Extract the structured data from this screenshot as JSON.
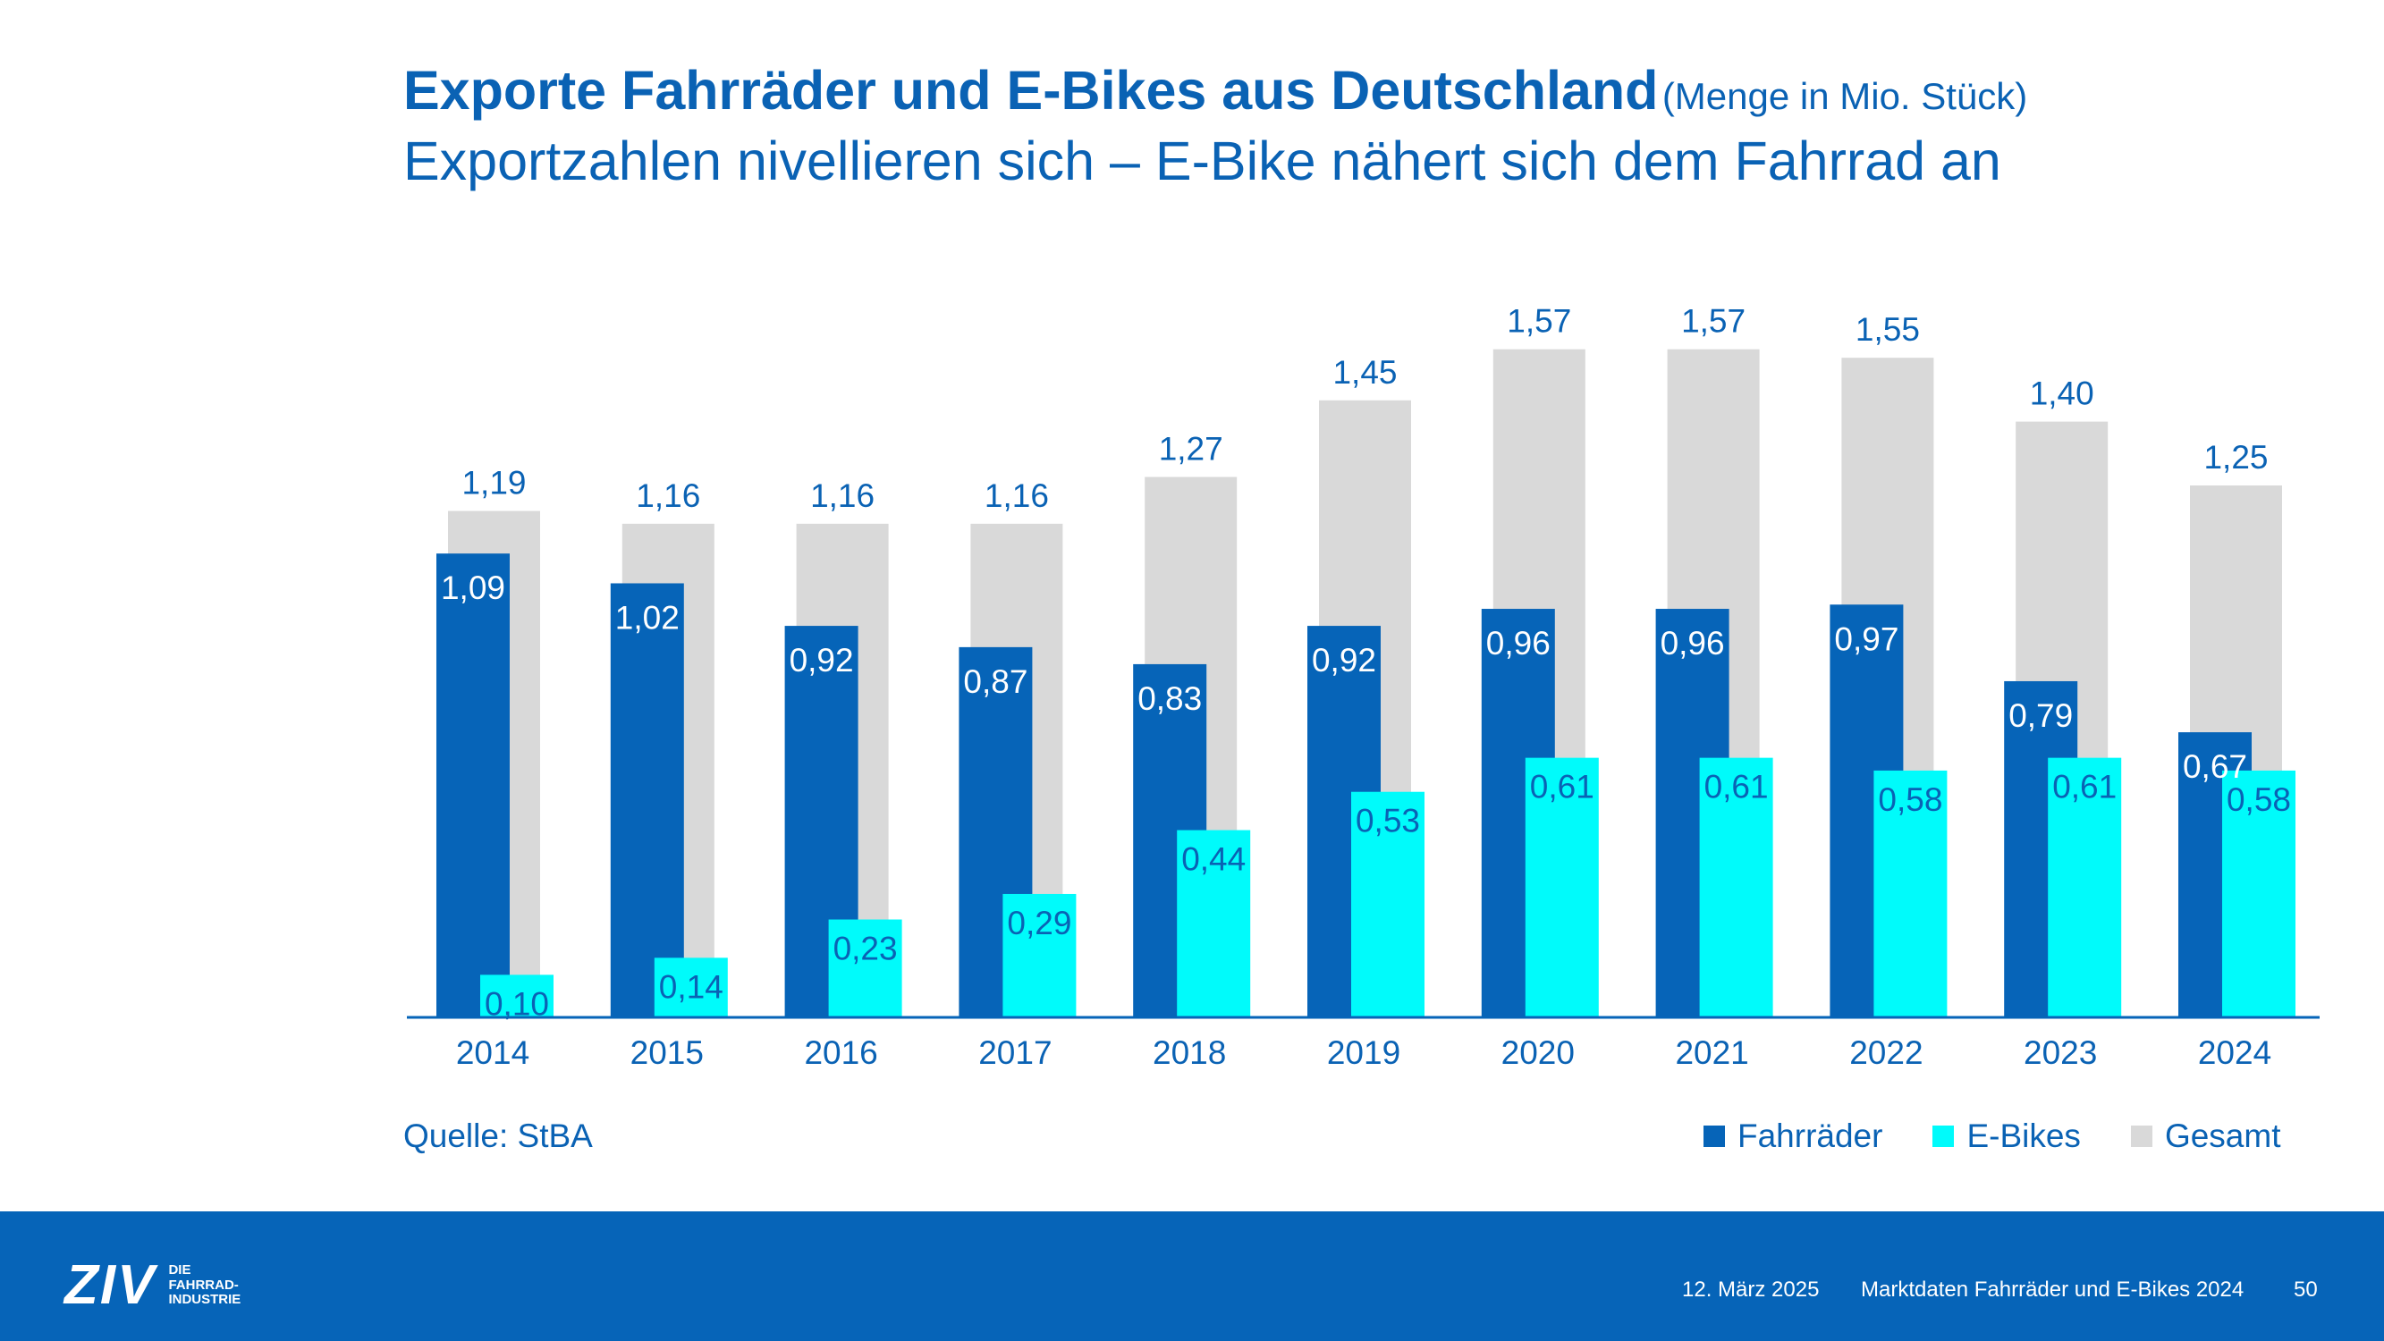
{
  "header": {
    "title": "Exporte Fahrräder und E-Bikes aus Deutschland",
    "title_unit": "(Menge in Mio. Stück)",
    "subtitle": "Exportzahlen nivellieren sich – E-Bike nähert sich dem Fahrrad an"
  },
  "source": "Quelle: StBA",
  "colors": {
    "fahrraeder": "#0664b8",
    "ebikes": "#00fbfb",
    "gesamt": "#d9d9d9",
    "text_blue": "#0a62b4"
  },
  "legend": [
    {
      "label": "Fahrräder",
      "color": "#0664b8"
    },
    {
      "label": "E-Bikes",
      "color": "#00fbfb"
    },
    {
      "label": "Gesamt",
      "color": "#d9d9d9"
    }
  ],
  "chart_data": {
    "type": "bar",
    "categories": [
      "2014",
      "2015",
      "2016",
      "2017",
      "2018",
      "2019",
      "2020",
      "2021",
      "2022",
      "2023",
      "2024"
    ],
    "series": [
      {
        "name": "Fahrräder",
        "values": [
          1.09,
          1.02,
          0.92,
          0.87,
          0.83,
          0.92,
          0.96,
          0.96,
          0.97,
          0.79,
          0.67
        ],
        "labels": [
          "1,09",
          "1,02",
          "0,92",
          "0,87",
          "0,83",
          "0,92",
          "0,96",
          "0,96",
          "0,97",
          "0,79",
          "0,67"
        ]
      },
      {
        "name": "E-Bikes",
        "values": [
          0.1,
          0.14,
          0.23,
          0.29,
          0.44,
          0.53,
          0.61,
          0.61,
          0.58,
          0.61,
          0.58
        ],
        "labels": [
          "0,10",
          "0,14",
          "0,23",
          "0,29",
          "0,44",
          "0,53",
          "0,61",
          "0,61",
          "0,58",
          "0,61",
          "0,58"
        ]
      },
      {
        "name": "Gesamt",
        "values": [
          1.19,
          1.16,
          1.16,
          1.16,
          1.27,
          1.45,
          1.57,
          1.57,
          1.55,
          1.4,
          1.25
        ],
        "labels": [
          "1,19",
          "1,16",
          "1,16",
          "1,16",
          "1,27",
          "1,45",
          "1,57",
          "1,57",
          "1,55",
          "1,40",
          "1,25"
        ]
      }
    ],
    "ylim": [
      0,
      1.6
    ],
    "grid": false,
    "legend_position": "bottom-right"
  },
  "footer": {
    "logo_word": "ZIV",
    "logo_sub_1": "DIE",
    "logo_sub_2": "FAHRRAD-",
    "logo_sub_3": "INDUSTRIE",
    "date": "12. März 2025",
    "doc_title": "Marktdaten Fahrräder und E-Bikes 2024",
    "page": "50"
  }
}
